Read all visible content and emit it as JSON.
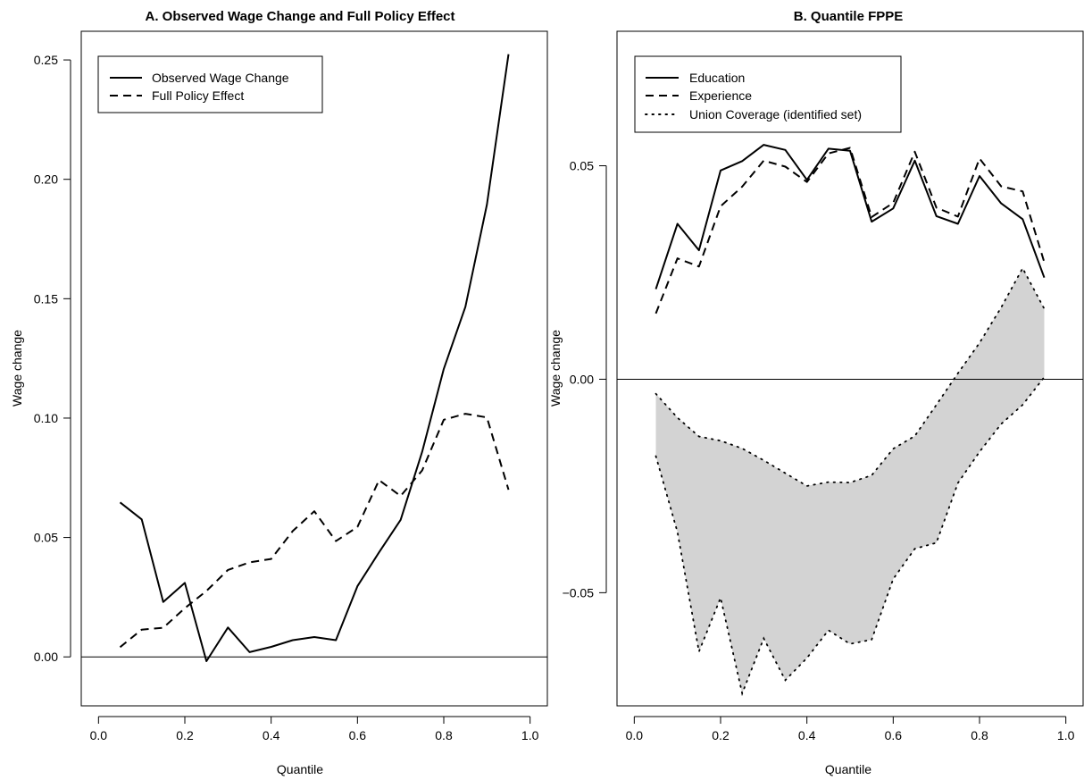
{
  "chart_data": [
    {
      "type": "line",
      "title": "A. Observed Wage Change and Full Policy Effect",
      "xlabel": "Quantile",
      "ylabel": "Wage change",
      "xlim": [
        -0.04,
        1.04
      ],
      "ylim": [
        -0.0205,
        0.262
      ],
      "xticks": [
        0.0,
        0.2,
        0.4,
        0.6,
        0.8,
        1.0
      ],
      "xtick_labels": [
        "0.0",
        "0.2",
        "0.4",
        "0.6",
        "0.8",
        "1.0"
      ],
      "yticks": [
        0.0,
        0.05,
        0.1,
        0.15,
        0.2,
        0.25
      ],
      "ytick_labels": [
        "0.00",
        "0.05",
        "0.10",
        "0.15",
        "0.20",
        "0.25"
      ],
      "reference_line_y": 0,
      "legend_position": "top-left",
      "legend": [
        "Observed Wage Change",
        "Full Policy Effect"
      ],
      "x": [
        0.05,
        0.1,
        0.15,
        0.2,
        0.25,
        0.3,
        0.35,
        0.4,
        0.45,
        0.5,
        0.55,
        0.6,
        0.65,
        0.7,
        0.75,
        0.8,
        0.85,
        0.9,
        0.95
      ],
      "series": [
        {
          "name": "Observed Wage Change",
          "style": "solid",
          "values": [
            0.0647,
            0.0576,
            0.023,
            0.031,
            -0.0018,
            0.0123,
            0.002,
            0.0042,
            0.007,
            0.0083,
            0.007,
            0.0296,
            0.0438,
            0.0574,
            0.0859,
            0.1206,
            0.1466,
            0.1894,
            0.2524
          ]
        },
        {
          "name": "Full Policy Effect",
          "style": "dashed",
          "values": [
            0.0041,
            0.0114,
            0.0122,
            0.0204,
            0.0276,
            0.0364,
            0.0396,
            0.041,
            0.0527,
            0.061,
            0.0485,
            0.0544,
            0.074,
            0.0674,
            0.0781,
            0.0993,
            0.1018,
            0.1003,
            0.07
          ]
        }
      ]
    },
    {
      "type": "line",
      "title": "B. Quantile FPPE",
      "xlabel": "Quantile",
      "ylabel": "Wage change",
      "xlim": [
        -0.04,
        1.04
      ],
      "ylim": [
        -0.0765,
        0.0815
      ],
      "xticks": [
        0.0,
        0.2,
        0.4,
        0.6,
        0.8,
        1.0
      ],
      "xtick_labels": [
        "0.0",
        "0.2",
        "0.4",
        "0.6",
        "0.8",
        "1.0"
      ],
      "yticks": [
        -0.05,
        0.0,
        0.05
      ],
      "ytick_labels": [
        "−0.05",
        "0.00",
        "0.05"
      ],
      "reference_line_y": 0,
      "legend_position": "top-left",
      "legend": [
        "Education",
        "Experience",
        "Union Coverage (identified set)"
      ],
      "x": [
        0.05,
        0.1,
        0.15,
        0.2,
        0.25,
        0.3,
        0.35,
        0.4,
        0.45,
        0.5,
        0.55,
        0.6,
        0.65,
        0.7,
        0.75,
        0.8,
        0.85,
        0.9,
        0.95
      ],
      "series": [
        {
          "name": "Education",
          "style": "solid",
          "values": [
            0.0211,
            0.0364,
            0.0302,
            0.0489,
            0.0511,
            0.0549,
            0.0537,
            0.0467,
            0.054,
            0.0535,
            0.0369,
            0.04,
            0.0512,
            0.0382,
            0.0364,
            0.0476,
            0.0412,
            0.0375,
            0.0238
          ]
        },
        {
          "name": "Experience",
          "style": "dashed",
          "values": [
            0.0154,
            0.0283,
            0.0264,
            0.0405,
            0.0451,
            0.0512,
            0.0498,
            0.0462,
            0.0529,
            0.0542,
            0.038,
            0.0413,
            0.0533,
            0.0402,
            0.0381,
            0.0517,
            0.0452,
            0.044,
            0.0274
          ]
        }
      ],
      "band": {
        "name": "Union Coverage (identified set)",
        "style": "dotted",
        "fill": "#d3d3d3",
        "upper": [
          -0.0034,
          -0.009,
          -0.0134,
          -0.0144,
          -0.0162,
          -0.019,
          -0.022,
          -0.025,
          -0.0241,
          -0.0242,
          -0.0225,
          -0.0163,
          -0.0133,
          -0.006,
          0.0014,
          0.0085,
          0.0168,
          0.026,
          0.0165
        ],
        "lower": [
          -0.018,
          -0.0358,
          -0.0638,
          -0.0512,
          -0.0736,
          -0.0607,
          -0.0705,
          -0.0653,
          -0.0588,
          -0.062,
          -0.061,
          -0.0468,
          -0.0397,
          -0.0383,
          -0.0243,
          -0.017,
          -0.0105,
          -0.006,
          0.0005
        ]
      }
    }
  ]
}
